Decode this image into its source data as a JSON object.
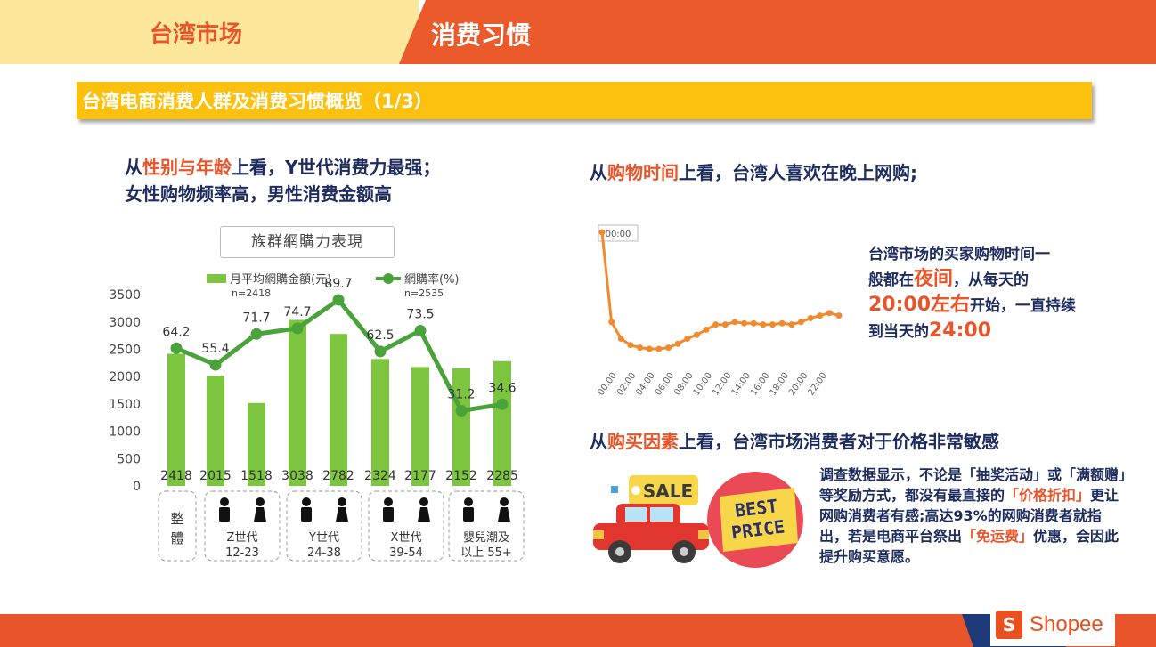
{
  "header": {
    "left_title": "台湾市场",
    "right_title": "消费习惯"
  },
  "banner": {
    "title": "台湾电商消费人群及消费习惯概览（1/3）"
  },
  "left_heading": {
    "prefix": "从",
    "highlight": "性别与年龄",
    "suffix": "上看，Y世代消费力最强；",
    "line2": "女性购物频率高，男性消费金额高"
  },
  "right_heading_time": {
    "prefix": "从",
    "highlight": "购物时间",
    "suffix": "上看，台湾人喜欢在晚上网购;"
  },
  "right_heading_factor": {
    "prefix": "从",
    "highlight": "购买因素",
    "suffix": "上看，台湾市场消费者对于价格非常敏感"
  },
  "time_note": {
    "l1": "台湾市场的买家购物时间一",
    "l2a": "般都在",
    "l2b": "夜间",
    "l2c": "，从每天的",
    "l3a": "20:00左右",
    "l3b": "开始，一直持续",
    "l4a": "到当天的",
    "l4b": "24:00"
  },
  "factor_paragraph": {
    "t1": "调查数据显示，不论是「抽奖活动」或「满额赠」等奖励方式，都没有最直接的",
    "h1": "「价格折扣」",
    "t2": "更让网购消费者有感;高达93%的网购消费者就指出，若是电商平台祭出",
    "h2": "「免运费」",
    "t3": "优惠，会因此提升购买意愿。"
  },
  "sale_tag": "SALE",
  "best_price": {
    "l1": "BEST",
    "l2": "PRICE"
  },
  "footer": {
    "brand": "Shopee",
    "bag_letter": "S"
  },
  "colors": {
    "orange": "#e8552b",
    "navy": "#1d2b5e",
    "bar_green": "#7dc441",
    "line_green": "#4aa33a",
    "time_line": "#ef8a2e"
  },
  "chart_data": [
    {
      "type": "bar",
      "title": "族群網購力表現",
      "series": [
        {
          "name": "月平均網購金額(元)",
          "note": "n=2418",
          "type": "bar",
          "values": [
            2418,
            2015,
            1518,
            3038,
            2782,
            2324,
            2177,
            2152,
            2285
          ]
        },
        {
          "name": "網購率(%)",
          "note": "n=2535",
          "type": "line",
          "values": [
            64.2,
            55.4,
            71.7,
            74.7,
            89.7,
            62.5,
            73.5,
            31.2,
            34.6
          ]
        }
      ],
      "yticks": [
        "3500",
        "3000",
        "2500",
        "2000",
        "1500",
        "1000",
        "500",
        "0"
      ],
      "ylim": [
        0,
        3500
      ],
      "groups": [
        {
          "label1": "整",
          "label2": "體",
          "icons": 0
        },
        {
          "label1": "Z世代",
          "label2": "12-23",
          "icons": 2
        },
        {
          "label1": "Y世代",
          "label2": "24-38",
          "icons": 2
        },
        {
          "label1": "X世代",
          "label2": "39-54",
          "icons": 2
        },
        {
          "label1": "嬰兒潮及",
          "label2": "以上 55+",
          "icons": 2
        }
      ]
    },
    {
      "type": "line",
      "xlabels": [
        "00:00",
        "02:00",
        "04:00",
        "06:00",
        "08:00",
        "10:00",
        "12:00",
        "14:00",
        "16:00",
        "18:00",
        "20:00",
        "22:00"
      ],
      "annotation": "00:00",
      "values": [
        100,
        30,
        17,
        12,
        10,
        9,
        9,
        10,
        13,
        17,
        20,
        24,
        28,
        28,
        30,
        29,
        29,
        28,
        28,
        29,
        28,
        30,
        33,
        35,
        37,
        35
      ]
    }
  ]
}
